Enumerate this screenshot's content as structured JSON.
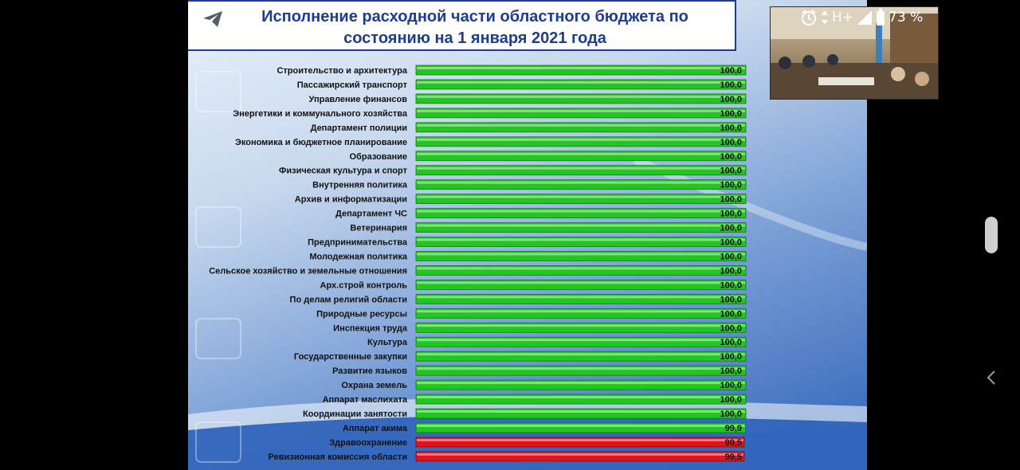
{
  "slide": {
    "title": "Исполнение расходной части областного бюджета по\nсостоянию на 1 января 2021 года"
  },
  "status_bar": {
    "network": "H+",
    "battery_text": "73 %"
  },
  "colors": {
    "bar_full": "#22c61e",
    "bar_below": "#e0141c",
    "title_text": "#1d3d8f"
  },
  "icons": [
    "telegram-send-icon",
    "alarm-icon",
    "data-arrows-icon",
    "signal-icon",
    "battery-icon",
    "chevron-left-icon"
  ],
  "chart_data": {
    "type": "bar",
    "orientation": "horizontal",
    "title": "Исполнение расходной части областного бюджета по состоянию на 1 января 2021 года",
    "xlabel": "",
    "ylabel": "",
    "xlim": [
      0,
      100
    ],
    "grid": false,
    "categories": [
      "Строительство и архитектура",
      "Пассажирский транспорт",
      "Управление финансов",
      "Энергетики и коммунального хозяйства",
      "Департамент полиции",
      "Экономика и бюджетное планирование",
      "Образование",
      "Физическая культура и спорт",
      "Внутренняя политика",
      "Архив и информатизации",
      "Департамент ЧС",
      "Ветеринария",
      "Предпринимательства",
      "Молодежная политика",
      "Сельское хозяйство и земельные отношения",
      "Арх.строй контроль",
      "По делам религий области",
      "Природные ресурсы",
      "Инспекция труда",
      "Культура",
      "Государственные закупки",
      "Развитие языков",
      "Охрана земель",
      "Аппарат маслихата",
      "Координации занятости",
      "Аппарат акима",
      "Здравоохранение",
      "Ревизионная комиссия области"
    ],
    "values": [
      100.0,
      100.0,
      100.0,
      100.0,
      100.0,
      100.0,
      100.0,
      100.0,
      100.0,
      100.0,
      100.0,
      100.0,
      100.0,
      100.0,
      100.0,
      100.0,
      100.0,
      100.0,
      100.0,
      100.0,
      100.0,
      100.0,
      100.0,
      100.0,
      100.0,
      99.9,
      99.5,
      99.5
    ],
    "value_labels": [
      "100,0",
      "100,0",
      "100,0",
      "100,0",
      "100,0",
      "100,0",
      "100,0",
      "100,0",
      "100,0",
      "100,0",
      "100,0",
      "100,0",
      "100,0",
      "100,0",
      "100,0",
      "100,0",
      "100,0",
      "100,0",
      "100,0",
      "100,0",
      "100,0",
      "100,0",
      "100,0",
      "100,0",
      "100,0",
      "99,9",
      "99,5",
      "99,5"
    ],
    "bar_colors": [
      "green",
      "green",
      "green",
      "green",
      "green",
      "green",
      "green",
      "green",
      "green",
      "green",
      "green",
      "green",
      "green",
      "green",
      "green",
      "green",
      "green",
      "green",
      "green",
      "green",
      "green",
      "green",
      "green",
      "green",
      "green",
      "green",
      "red",
      "red"
    ]
  }
}
